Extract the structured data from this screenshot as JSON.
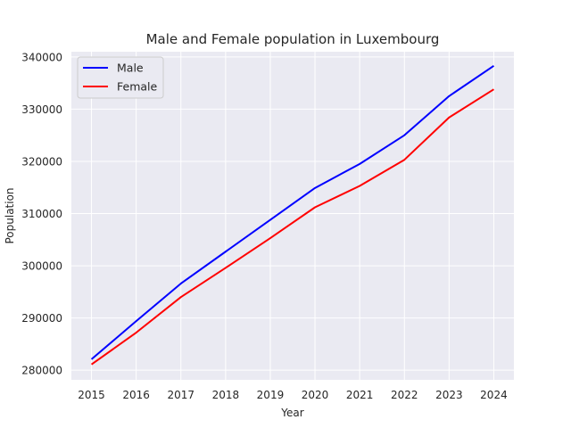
{
  "chart_data": {
    "type": "line",
    "title": "Male and Female population in Luxembourg",
    "xlabel": "Year",
    "ylabel": "Population",
    "x": [
      2015,
      2016,
      2017,
      2018,
      2019,
      2020,
      2021,
      2022,
      2023,
      2024
    ],
    "xticks": [
      "2015",
      "2016",
      "2017",
      "2018",
      "2019",
      "2020",
      "2021",
      "2022",
      "2023",
      "2024"
    ],
    "yticks": [
      280000,
      290000,
      300000,
      310000,
      320000,
      330000,
      340000
    ],
    "ytick_labels": [
      "280000",
      "290000",
      "300000",
      "310000",
      "320000",
      "330000",
      "340000"
    ],
    "xlim": [
      2014.55,
      2024.45
    ],
    "ylim": [
      278150,
      341000
    ],
    "grid": true,
    "legend_position": "top-left",
    "series": [
      {
        "name": "Male",
        "color": "#0000ff",
        "values": [
          282100,
          289400,
          296600,
          302700,
          308800,
          314900,
          319500,
          325000,
          332500,
          338300
        ]
      },
      {
        "name": "Female",
        "color": "#ff0000",
        "values": [
          281100,
          287200,
          294000,
          299600,
          305300,
          311200,
          315300,
          320300,
          328400,
          333800
        ]
      }
    ],
    "colors": {
      "plot_background": "#eaeaf2",
      "grid": "#ffffff",
      "text": "#262626"
    }
  }
}
